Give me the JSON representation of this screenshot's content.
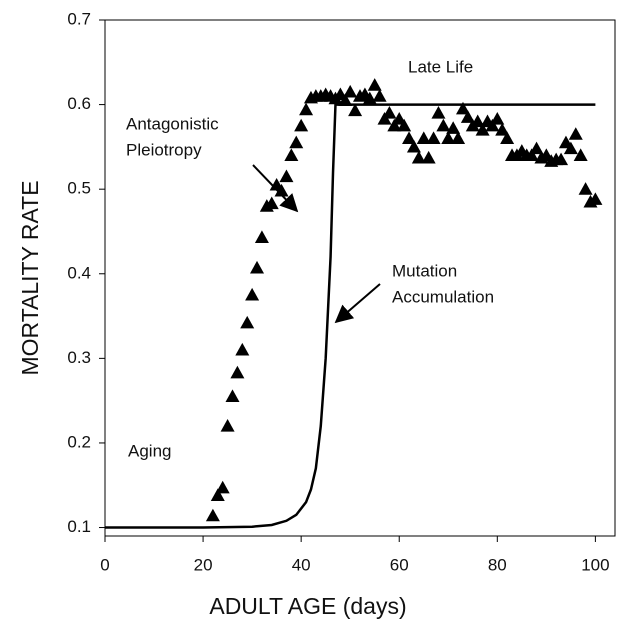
{
  "chart_data": {
    "type": "scatter",
    "xlabel": "ADULT AGE (days)",
    "ylabel": "MORTALITY RATE",
    "xlim": [
      0,
      104
    ],
    "ylim": [
      0.09,
      0.7
    ],
    "xticks": [
      0,
      20,
      40,
      60,
      80,
      100
    ],
    "yticks": [
      0.1,
      0.2,
      0.3,
      0.4,
      0.5,
      0.6,
      0.7
    ],
    "annotations": [
      [
        "Late Life"
      ],
      [
        "Antagonistic",
        "Pleiotropy"
      ],
      [
        "Aging"
      ],
      [
        "Mutation",
        "Accumulation"
      ]
    ],
    "series": [
      {
        "type": "scatter",
        "color": "#000000",
        "x": [
          22,
          23,
          24,
          25,
          26,
          27,
          28,
          29,
          30,
          31,
          32,
          33,
          34,
          35,
          36,
          37,
          38,
          39,
          40,
          41,
          42,
          43,
          44,
          45,
          46,
          47,
          48,
          49,
          50,
          51,
          52,
          53,
          54,
          55,
          56,
          57,
          58,
          59,
          60,
          61,
          62,
          63,
          64,
          65,
          66,
          67,
          68,
          69,
          70,
          71,
          72,
          73,
          74,
          75,
          76,
          77,
          78,
          79,
          80,
          81,
          82,
          83,
          84,
          85,
          86,
          87,
          88,
          89,
          90,
          91,
          92,
          93,
          94,
          95,
          96,
          97,
          98,
          99,
          100
        ],
        "values": [
          0.114,
          0.138,
          0.147,
          0.22,
          0.255,
          0.283,
          0.31,
          0.342,
          0.375,
          0.407,
          0.443,
          0.48,
          0.483,
          0.505,
          0.498,
          0.515,
          0.54,
          0.555,
          0.575,
          0.594,
          0.608,
          0.61,
          0.61,
          0.612,
          0.61,
          0.607,
          0.612,
          0.605,
          0.615,
          0.593,
          0.61,
          0.612,
          0.607,
          0.623,
          0.61,
          0.583,
          0.59,
          0.575,
          0.583,
          0.575,
          0.56,
          0.55,
          0.537,
          0.56,
          0.537,
          0.56,
          0.59,
          0.575,
          0.56,
          0.572,
          0.56,
          0.595,
          0.585,
          0.575,
          0.58,
          0.57,
          0.58,
          0.575,
          0.583,
          0.57,
          0.56,
          0.54,
          0.54,
          0.545,
          0.54,
          0.54,
          0.548,
          0.537,
          0.54,
          0.533,
          0.535,
          0.535,
          0.555,
          0.548,
          0.565,
          0.54,
          0.5,
          0.485,
          0.488
        ]
      },
      {
        "type": "line",
        "color": "#000000",
        "x": [
          0,
          20,
          30,
          34,
          37,
          39,
          41,
          42,
          43,
          44,
          45,
          46,
          46.5,
          47,
          100
        ],
        "values": [
          0.1,
          0.1,
          0.101,
          0.103,
          0.108,
          0.115,
          0.13,
          0.145,
          0.17,
          0.22,
          0.3,
          0.42,
          0.52,
          0.6,
          0.6
        ]
      }
    ]
  }
}
